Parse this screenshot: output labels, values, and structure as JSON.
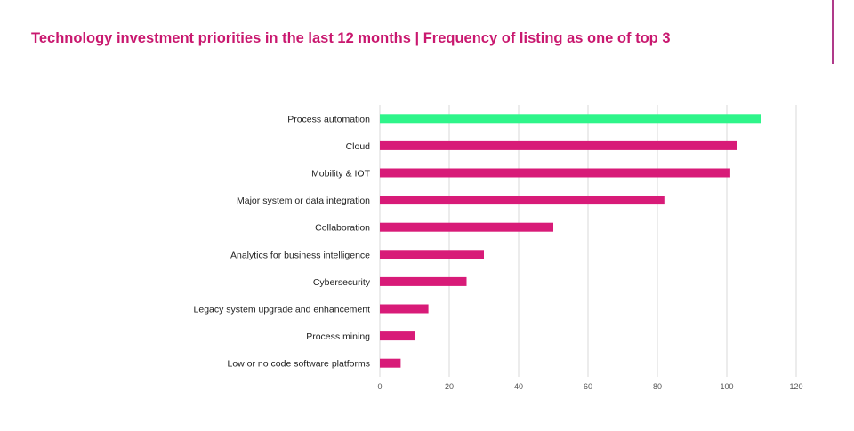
{
  "title": "Technology investment priorities in the last 12 months | Frequency of listing as one of top 3",
  "colors": {
    "title": "#c9186f",
    "bar": "#d81b78",
    "highlight": "#2ef58a",
    "grid": "#d9d9d9",
    "accent_rule": "#b03a8a"
  },
  "chart_data": {
    "type": "bar",
    "orientation": "horizontal",
    "title": "Technology investment priorities in the last 12 months | Frequency of listing as one of top 3",
    "xlabel": "",
    "ylabel": "",
    "categories": [
      "Process automation",
      "Cloud",
      "Mobility & IOT",
      "Major system or data integration",
      "Collaboration",
      "Analytics for business intelligence",
      "Cybersecurity",
      "Legacy system upgrade and enhancement",
      "Process mining",
      "Low or no code software platforms"
    ],
    "values": [
      110,
      103,
      101,
      82,
      50,
      30,
      25,
      14,
      10,
      6
    ],
    "highlight_index": 0,
    "xlim": [
      0,
      120
    ],
    "xticks": [
      0,
      20,
      40,
      60,
      80,
      100,
      120
    ],
    "grid": true,
    "legend": "none"
  }
}
